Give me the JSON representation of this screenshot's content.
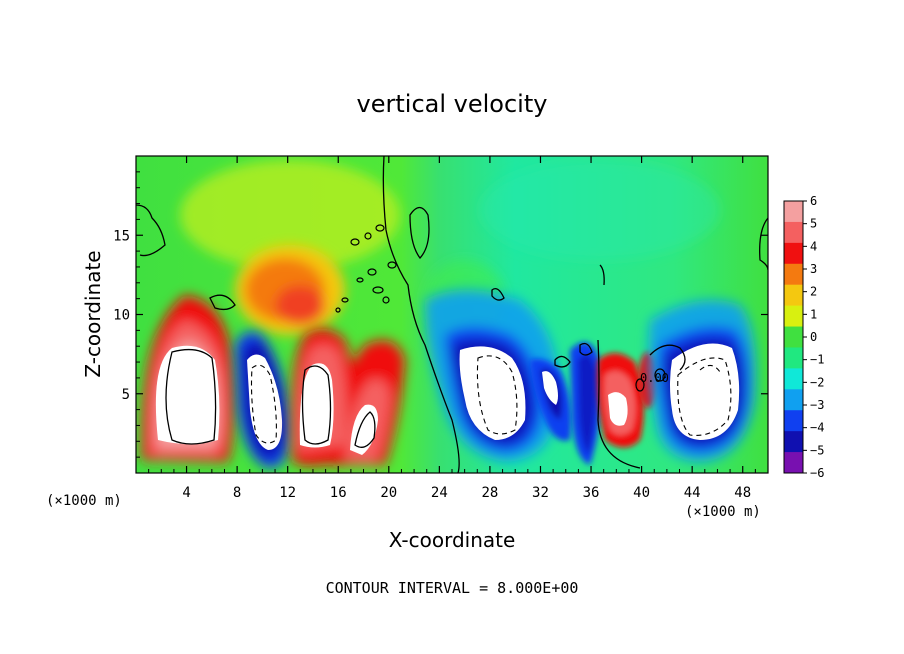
{
  "chart_data": {
    "type": "heatmap",
    "title": "vertical velocity",
    "xlabel": "X-coordinate",
    "ylabel": "Z-coordinate",
    "x_unit_left": "(×1000 m)",
    "x_unit_right": "(×1000 m)",
    "footer": "CONTOUR INTERVAL = 8.000E+00",
    "xlim": [
      0,
      50
    ],
    "ylim": [
      0,
      20
    ],
    "xticks": [
      4,
      8,
      12,
      16,
      20,
      24,
      28,
      32,
      36,
      40,
      44,
      48
    ],
    "yticks": [
      5,
      10,
      15
    ],
    "xtick_labels": [
      "4",
      "8",
      "12",
      "16",
      "20",
      "24",
      "28",
      "32",
      "36",
      "40",
      "44",
      "48"
    ],
    "ytick_labels": [
      "5",
      "10",
      "15"
    ],
    "colorbar": {
      "levels": [
        6,
        5,
        4,
        3,
        2,
        1,
        0,
        -1,
        -2,
        -3,
        -4,
        -5,
        -6
      ],
      "labels": [
        "6",
        "5",
        "4",
        "3",
        "2",
        "1",
        "0",
        "−1",
        "−2",
        "−3",
        "−4",
        "−5",
        "−6"
      ],
      "colors": [
        "#f4a0a0",
        "#f46060",
        "#f01010",
        "#f47a10",
        "#f4c810",
        "#d8f010",
        "#40e040",
        "#20e880",
        "#10e8d8",
        "#10a0f0",
        "#1040f0",
        "#1010b0",
        "#7810b0"
      ]
    },
    "contour_label": "0.00",
    "features": [
      {
        "kind": "updraft",
        "x": 4.8,
        "z": 5.5,
        "peak": 8
      },
      {
        "kind": "downdraft",
        "x": 10.2,
        "z": 4.8,
        "peak": -8
      },
      {
        "kind": "updraft",
        "x": 14.0,
        "z": 5.0,
        "peak": 8
      },
      {
        "kind": "updraft",
        "x": 17.5,
        "z": 4.0,
        "peak": 6
      },
      {
        "kind": "updraft",
        "x": 13.0,
        "z": 11.0,
        "peak": 3
      },
      {
        "kind": "downdraft",
        "x": 29.0,
        "z": 5.0,
        "peak": -8
      },
      {
        "kind": "downdraft",
        "x": 32.5,
        "z": 5.5,
        "peak": -6
      },
      {
        "kind": "updraft",
        "x": 38.5,
        "z": 4.5,
        "peak": 6
      },
      {
        "kind": "downdraft",
        "x": 45.5,
        "z": 5.5,
        "peak": -8
      }
    ]
  }
}
